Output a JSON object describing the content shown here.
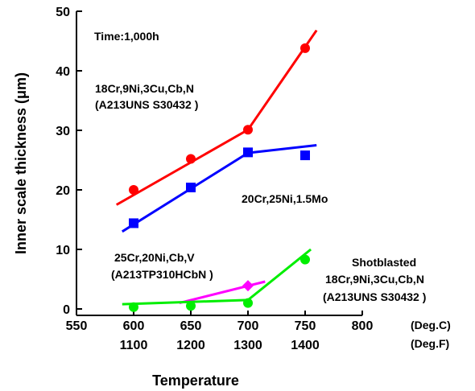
{
  "chart_data": {
    "type": "scatter",
    "xlabel": "Temperature",
    "ylabel": "Inner scale thickness (μm)",
    "xlim": [
      550,
      800
    ],
    "ylim": [
      0,
      50
    ],
    "x_ticks": [
      "550",
      "600",
      "650",
      "700",
      "750",
      "800"
    ],
    "x_ticks_f": [
      "1100",
      "1200",
      "1300",
      "1400"
    ],
    "y_ticks": [
      "0",
      "10",
      "20",
      "30",
      "40",
      "50"
    ],
    "x_unit_c": "(Deg.C)",
    "x_unit_f": "(Deg.F)",
    "annotations": {
      "time": "Time:1,000h",
      "red_1": "18Cr,9Ni,3Cu,Cb,N",
      "red_2": "(A213UNS S30432 )",
      "blue_1": "20Cr,25Ni,1.5Mo",
      "mag_1": "25Cr,20Ni,Cb,V",
      "mag_2": "(A213TP310HCbN )",
      "green_1": "Shotblasted",
      "green_2": "18Cr,9Ni,3Cu,Cb,N",
      "green_3": "(A213UNS S30432 )"
    },
    "series": [
      {
        "color": "#ff0000",
        "marker": "circle",
        "points": [
          [
            600,
            20
          ],
          [
            650,
            25.2
          ],
          [
            700,
            30.1
          ],
          [
            750,
            43.8
          ]
        ],
        "fit": [
          [
            585,
            17.5
          ],
          [
            700,
            30.1
          ],
          [
            760,
            46.8
          ]
        ]
      },
      {
        "color": "#0000ff",
        "marker": "square",
        "points": [
          [
            600,
            14.4
          ],
          [
            650,
            20.4
          ],
          [
            700,
            26.3
          ],
          [
            750,
            25.8
          ]
        ],
        "fit": [
          [
            590,
            13
          ],
          [
            700,
            26.2
          ],
          [
            760,
            27.5
          ]
        ]
      },
      {
        "color": "#ff00ff",
        "marker": "diamond",
        "points": [
          [
            700,
            3.9
          ]
        ],
        "fit": [
          [
            640,
            1
          ],
          [
            715,
            4.6
          ]
        ]
      },
      {
        "color": "#00ee00",
        "marker": "circle",
        "points": [
          [
            600,
            0.3
          ],
          [
            650,
            0.5
          ],
          [
            700,
            1
          ],
          [
            750,
            8.3
          ]
        ],
        "fit": [
          [
            590,
            0.8
          ],
          [
            700,
            1.5
          ],
          [
            755,
            10
          ]
        ]
      }
    ]
  }
}
